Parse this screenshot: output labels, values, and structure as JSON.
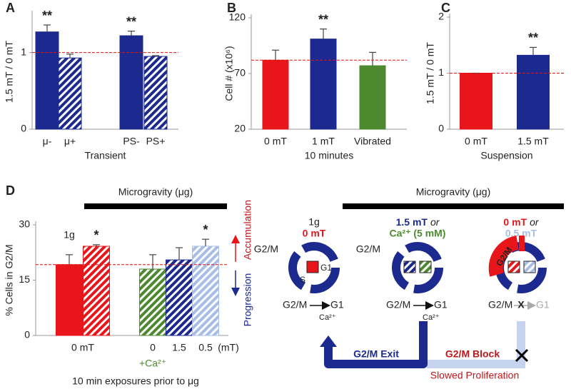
{
  "chart_data": [
    {
      "type": "bar",
      "panel": "A",
      "y_label": "1.5 mT / 0 mT",
      "x_label": "Transient",
      "categories": [
        "μ-",
        "μ+",
        "PS-",
        "PS+"
      ],
      "values": [
        1.27,
        0.93,
        1.22,
        0.95
      ],
      "errors": [
        0.09,
        0.05,
        0.06,
        0.01
      ],
      "colors": [
        "#1c2a8f",
        "#1c2a8f",
        "#1c2a8f",
        "#1c2a8f"
      ],
      "hatch": [
        false,
        true,
        false,
        true
      ],
      "annotations": [
        "**",
        null,
        "**",
        null
      ],
      "reference_line": 1,
      "ylim": [
        0,
        1.5
      ],
      "yticks": [
        0,
        1
      ]
    },
    {
      "type": "bar",
      "panel": "B",
      "y_label": "Cell # (x10⁶)",
      "x_label": "10 minutes",
      "categories": [
        "0 mT",
        "1 mT",
        "Vibrated"
      ],
      "values": [
        82,
        101,
        77
      ],
      "errors": [
        9,
        9,
        12
      ],
      "colors": [
        "#e8161b",
        "#1c2a8f",
        "#4d8a2f"
      ],
      "hatch": [
        false,
        false,
        false
      ],
      "annotations": [
        null,
        "**",
        null
      ],
      "reference_line": 82,
      "ylim": [
        20,
        120
      ],
      "yticks": [
        20,
        70,
        120
      ]
    },
    {
      "type": "bar",
      "panel": "C",
      "y_label": "1.5 mT / 0 mT",
      "x_label": "Suspension",
      "categories": [
        "0 mT",
        "1.5 mT"
      ],
      "values": [
        1,
        1.32
      ],
      "errors": [
        0,
        0.14
      ],
      "colors": [
        "#e8161b",
        "#1c2a8f"
      ],
      "hatch": [
        false,
        false
      ],
      "annotations": [
        null,
        "**"
      ],
      "reference_line": 1,
      "ylim": [
        0,
        2
      ],
      "yticks": [
        0,
        1,
        2
      ]
    },
    {
      "type": "bar",
      "panel": "D",
      "y_label": "% Cells in G2/M",
      "x_label": "10 min exposures prior to μg",
      "categories": [
        "0 mT",
        null,
        "0",
        "1.5",
        "0.5"
      ],
      "values": [
        19.2,
        24.2,
        18.0,
        20.5,
        24.2
      ],
      "errors": [
        2.7,
        0.4,
        3.9,
        3.3,
        1.9
      ],
      "colors": [
        "#e8161b",
        "#e8161b",
        "#4d8a2f",
        "#1c2a8f",
        "#a7bde6"
      ],
      "hatch": [
        false,
        true,
        true,
        true,
        true
      ],
      "annotations": [
        null,
        "*",
        null,
        null,
        "*"
      ],
      "reference_line": 19.2,
      "ylim": [
        0,
        30
      ],
      "yticks": [
        0,
        15,
        30
      ],
      "group_note": "1g",
      "span_label": "Microgravity (μg)",
      "unit_label": "(mT)",
      "ca_label": "+Ca²⁺",
      "arrow_up": "Accumulation",
      "arrow_down": "Progression"
    }
  ],
  "diagram": {
    "title": "Microgravity (μg)",
    "cycle_1": {
      "gravity": "1g",
      "condition": "0 mT",
      "phase": "G2/M",
      "inner_g1": "G1",
      "inner_s": "S",
      "from": "G2/M",
      "to": "G1",
      "ion": "Ca²⁺"
    },
    "cycle_2": {
      "condition": "1.5 mT",
      "or": "or",
      "alt": "Ca²⁺ (5 mM)",
      "phase": "G2/M",
      "from": "G2/M",
      "to": "G1",
      "ion": "Ca²⁺"
    },
    "cycle_3": {
      "condition": "0 mT",
      "or": "or",
      "alt": "0.5 mT",
      "blocked_phase": "G2/M",
      "from": "G2/M",
      "block": "X",
      "to": "G1"
    },
    "exit_label": "G2/M Exit",
    "block_label": "G2/M Block",
    "outcome": "Slowed Proliferation"
  }
}
